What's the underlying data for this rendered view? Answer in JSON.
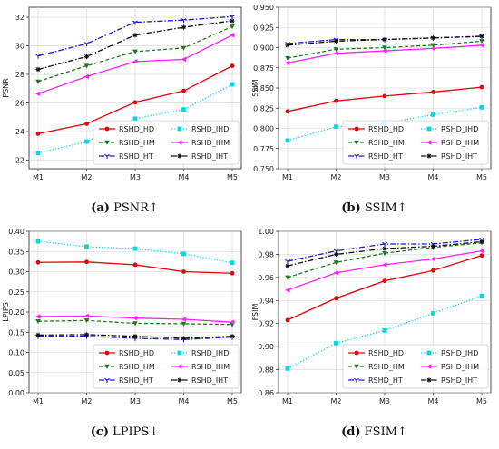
{
  "chart_data": [
    {
      "type": "line",
      "panel_letter": "(a)",
      "caption": "PSNR↑",
      "ylabel": "PSNR",
      "ylim": [
        21.4,
        32.7
      ],
      "yticks": [
        "22",
        "24",
        "26",
        "28",
        "30",
        "32"
      ],
      "categories": [
        "M1",
        "M2",
        "M3",
        "M4",
        "M5"
      ],
      "legend_position": "lower-right",
      "series": [
        {
          "name": "RSHD_HD",
          "color": "#e8000b",
          "dash": "solid",
          "marker": "circle",
          "values": [
            23.85,
            24.55,
            26.05,
            26.85,
            28.6
          ]
        },
        {
          "name": "RSHD_IHD",
          "color": "#00d7e8",
          "dash": "dot",
          "marker": "square",
          "values": [
            22.5,
            23.3,
            24.9,
            25.55,
            27.3
          ]
        },
        {
          "name": "RSHD_HM",
          "color": "#1a7a1a",
          "dash": "dash",
          "marker": "triangle",
          "values": [
            27.5,
            28.6,
            29.6,
            29.85,
            31.35
          ]
        },
        {
          "name": "RSHD_IHM",
          "color": "#ff22ff",
          "dash": "solid",
          "marker": "tri-left",
          "values": [
            26.65,
            27.85,
            28.9,
            29.05,
            30.75
          ]
        },
        {
          "name": "RSHD_HT",
          "color": "#1a1ad4",
          "dash": "dashdot",
          "marker": "tri-down",
          "values": [
            29.3,
            30.15,
            31.65,
            31.8,
            32.05
          ]
        },
        {
          "name": "RSHD_IHT",
          "color": "#111111",
          "dash": "dashdot",
          "marker": "star",
          "values": [
            28.35,
            29.25,
            30.75,
            31.3,
            31.75
          ]
        }
      ]
    },
    {
      "type": "line",
      "panel_letter": "(b)",
      "caption": "SSIM↑",
      "ylabel": "SSIM",
      "ylim": [
        0.75,
        0.95
      ],
      "yticks": [
        "0.750",
        "0.775",
        "0.800",
        "0.825",
        "0.850",
        "0.875",
        "0.900",
        "0.925",
        "0.950"
      ],
      "categories": [
        "M1",
        "M2",
        "M3",
        "M4",
        "M5"
      ],
      "legend_position": "lower-right",
      "series": [
        {
          "name": "RSHD_HD",
          "color": "#e8000b",
          "dash": "solid",
          "marker": "circle",
          "values": [
            0.821,
            0.834,
            0.84,
            0.845,
            0.851
          ]
        },
        {
          "name": "RSHD_IHD",
          "color": "#00d7e8",
          "dash": "dot",
          "marker": "square",
          "values": [
            0.785,
            0.802,
            0.806,
            0.817,
            0.826
          ]
        },
        {
          "name": "RSHD_HM",
          "color": "#1a7a1a",
          "dash": "dash",
          "marker": "triangle",
          "values": [
            0.887,
            0.898,
            0.9,
            0.903,
            0.908
          ]
        },
        {
          "name": "RSHD_IHM",
          "color": "#ff22ff",
          "dash": "solid",
          "marker": "tri-left",
          "values": [
            0.881,
            0.893,
            0.896,
            0.899,
            0.903
          ]
        },
        {
          "name": "RSHD_HT",
          "color": "#1a1ad4",
          "dash": "dashdot",
          "marker": "tri-down",
          "values": [
            0.905,
            0.91,
            0.91,
            0.912,
            0.914
          ]
        },
        {
          "name": "RSHD_IHT",
          "color": "#111111",
          "dash": "dashdot",
          "marker": "star",
          "values": [
            0.903,
            0.908,
            0.91,
            0.912,
            0.914
          ]
        }
      ]
    },
    {
      "type": "line",
      "panel_letter": "(c)",
      "caption": "LPIPS↓",
      "ylabel": "LPIPS",
      "ylim": [
        0.0,
        0.4
      ],
      "yticks": [
        "0.00",
        "0.05",
        "0.10",
        "0.15",
        "0.20",
        "0.25",
        "0.30",
        "0.35",
        "0.40"
      ],
      "categories": [
        "M1",
        "M2",
        "M3",
        "M4",
        "M5"
      ],
      "legend_position": "lower-right",
      "series": [
        {
          "name": "RSHD_HD",
          "color": "#e8000b",
          "dash": "solid",
          "marker": "circle",
          "values": [
            0.323,
            0.324,
            0.317,
            0.3,
            0.296
          ]
        },
        {
          "name": "RSHD_IHD",
          "color": "#00d7e8",
          "dash": "dot",
          "marker": "square",
          "values": [
            0.375,
            0.362,
            0.357,
            0.344,
            0.322
          ]
        },
        {
          "name": "RSHD_HM",
          "color": "#1a7a1a",
          "dash": "dash",
          "marker": "triangle",
          "values": [
            0.177,
            0.179,
            0.172,
            0.171,
            0.169
          ]
        },
        {
          "name": "RSHD_IHM",
          "color": "#ff22ff",
          "dash": "solid",
          "marker": "tri-left",
          "values": [
            0.189,
            0.19,
            0.185,
            0.182,
            0.175
          ]
        },
        {
          "name": "RSHD_HT",
          "color": "#1a1ad4",
          "dash": "dashdot",
          "marker": "tri-down",
          "values": [
            0.14,
            0.14,
            0.135,
            0.132,
            0.138
          ]
        },
        {
          "name": "RSHD_IHT",
          "color": "#111111",
          "dash": "dashdot",
          "marker": "star",
          "values": [
            0.143,
            0.144,
            0.14,
            0.135,
            0.14
          ]
        }
      ]
    },
    {
      "type": "line",
      "panel_letter": "(d)",
      "caption": "FSIM↑",
      "ylabel": "FSIM",
      "ylim": [
        0.86,
        1.0
      ],
      "yticks": [
        "0.86",
        "0.88",
        "0.90",
        "0.92",
        "0.94",
        "0.96",
        "0.98",
        "1.00"
      ],
      "categories": [
        "M1",
        "M2",
        "M3",
        "M4",
        "M5"
      ],
      "legend_position": "lower-right",
      "series": [
        {
          "name": "RSHD_HD",
          "color": "#e8000b",
          "dash": "solid",
          "marker": "circle",
          "values": [
            0.923,
            0.942,
            0.957,
            0.966,
            0.979
          ]
        },
        {
          "name": "RSHD_IHD",
          "color": "#00d7e8",
          "dash": "dot",
          "marker": "square",
          "values": [
            0.881,
            0.903,
            0.914,
            0.929,
            0.944
          ]
        },
        {
          "name": "RSHD_HM",
          "color": "#1a7a1a",
          "dash": "dash",
          "marker": "triangle",
          "values": [
            0.96,
            0.973,
            0.981,
            0.986,
            0.99
          ]
        },
        {
          "name": "RSHD_IHM",
          "color": "#ff22ff",
          "dash": "solid",
          "marker": "tri-left",
          "values": [
            0.949,
            0.964,
            0.971,
            0.976,
            0.983
          ]
        },
        {
          "name": "RSHD_HT",
          "color": "#1a1ad4",
          "dash": "dashdot",
          "marker": "tri-down",
          "values": [
            0.974,
            0.983,
            0.989,
            0.989,
            0.993
          ]
        },
        {
          "name": "RSHD_IHT",
          "color": "#111111",
          "dash": "dashdot",
          "marker": "star",
          "values": [
            0.97,
            0.98,
            0.985,
            0.987,
            0.991
          ]
        }
      ]
    }
  ]
}
